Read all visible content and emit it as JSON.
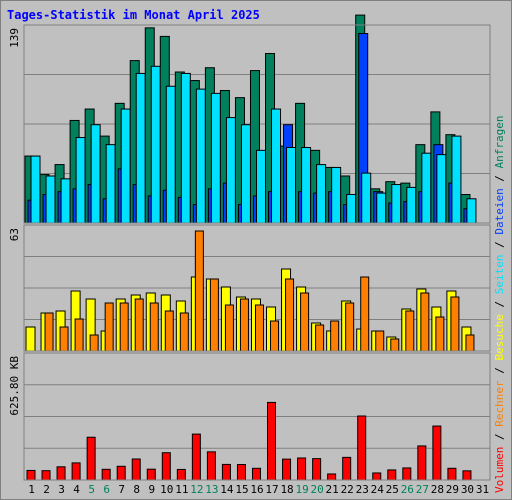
{
  "title": "Tages-Statistik im Monat April 2025",
  "colors": {
    "anfragen": "#00805c",
    "dateien": "#0040ff",
    "seiten": "#00e0ff",
    "besuche": "#ffff00",
    "rechner": "#ff8000",
    "volumen": "#ff0000",
    "title": "#0000ff",
    "weekend_tick": "#00805c"
  },
  "chart_data": {
    "type": "bar",
    "categories": [
      "1",
      "2",
      "3",
      "4",
      "5",
      "6",
      "7",
      "8",
      "9",
      "10",
      "11",
      "12",
      "13",
      "14",
      "15",
      "16",
      "17",
      "18",
      "19",
      "20",
      "21",
      "22",
      "23",
      "24",
      "25",
      "26",
      "27",
      "28",
      "29",
      "30",
      "31"
    ],
    "weekend_days": [
      5,
      6,
      12,
      13,
      19,
      20,
      26,
      27
    ],
    "legend_right": [
      {
        "text": "Volumen",
        "color_key": "volumen"
      },
      {
        "text": " / ",
        "color_key": null
      },
      {
        "text": "Rechner",
        "color_key": "rechner"
      },
      {
        "text": " / ",
        "color_key": null
      },
      {
        "text": "Besuche",
        "color_key": "besuche"
      },
      {
        "text": " / ",
        "color_key": null
      },
      {
        "text": "Seiten",
        "color_key": "seiten"
      },
      {
        "text": " / ",
        "color_key": null
      },
      {
        "text": "Dateien",
        "color_key": "dateien"
      },
      {
        "text": " / ",
        "color_key": null
      },
      {
        "text": "Anfragen",
        "color_key": "anfragen"
      }
    ],
    "panels": [
      {
        "id": "top",
        "ymax": 139,
        "ymax_label": "139",
        "series": [
          {
            "key": "anfragen",
            "values": [
              47,
              34,
              41,
              72,
              80,
              61,
              84,
              114,
              137,
              131,
              106,
              100,
              109,
              93,
              88,
              107,
              119,
              54,
              84,
              51,
              39,
              33,
              146,
              24,
              29,
              28,
              55,
              78,
              62,
              20,
              0
            ]
          },
          {
            "key": "dateien",
            "values": [
              16,
              20,
              22,
              24,
              27,
              17,
              38,
              27,
              19,
              23,
              18,
              13,
              24,
              28,
              13,
              19,
              22,
              69,
              22,
              21,
              22,
              13,
              133,
              22,
              14,
              15,
              22,
              55,
              28,
              10,
              0
            ]
          },
          {
            "key": "seiten",
            "values": [
              47,
              33,
              31,
              60,
              69,
              55,
              80,
              105,
              110,
              96,
              105,
              94,
              91,
              74,
              69,
              51,
              80,
              53,
              53,
              41,
              39,
              20,
              35,
              21,
              27,
              25,
              49,
              48,
              61,
              17,
              0
            ]
          }
        ]
      },
      {
        "id": "middle",
        "ymax": 63,
        "ymax_label": "63",
        "series": [
          {
            "key": "besuche",
            "values": [
              12,
              19,
              20,
              30,
              26,
              10,
              26,
              28,
              29,
              28,
              25,
              37,
              36,
              32,
              27,
              26,
              22,
              41,
              32,
              14,
              10,
              25,
              11,
              10,
              7,
              21,
              31,
              22,
              30,
              12,
              0
            ]
          },
          {
            "key": "rechner",
            "values": [
              0,
              19,
              12,
              16,
              8,
              24,
              24,
              26,
              24,
              20,
              19,
              60,
              36,
              23,
              26,
              23,
              15,
              36,
              29,
              13,
              15,
              24,
              37,
              10,
              6,
              20,
              29,
              17,
              27,
              8,
              0
            ]
          }
        ]
      },
      {
        "id": "bottom",
        "ymax": 1010,
        "ymax_label": "625.80 KB",
        "series": [
          {
            "key": "volumen",
            "values": [
              76,
              74,
              105,
              136,
              340,
              85,
              109,
              167,
              86,
              217,
              84,
              365,
              224,
              124,
              123,
              93,
              617,
              166,
              175,
              170,
              48,
              180,
              509,
              56,
              80,
              96,
              271,
              429,
              93,
              73,
              0
            ]
          }
        ]
      }
    ]
  }
}
